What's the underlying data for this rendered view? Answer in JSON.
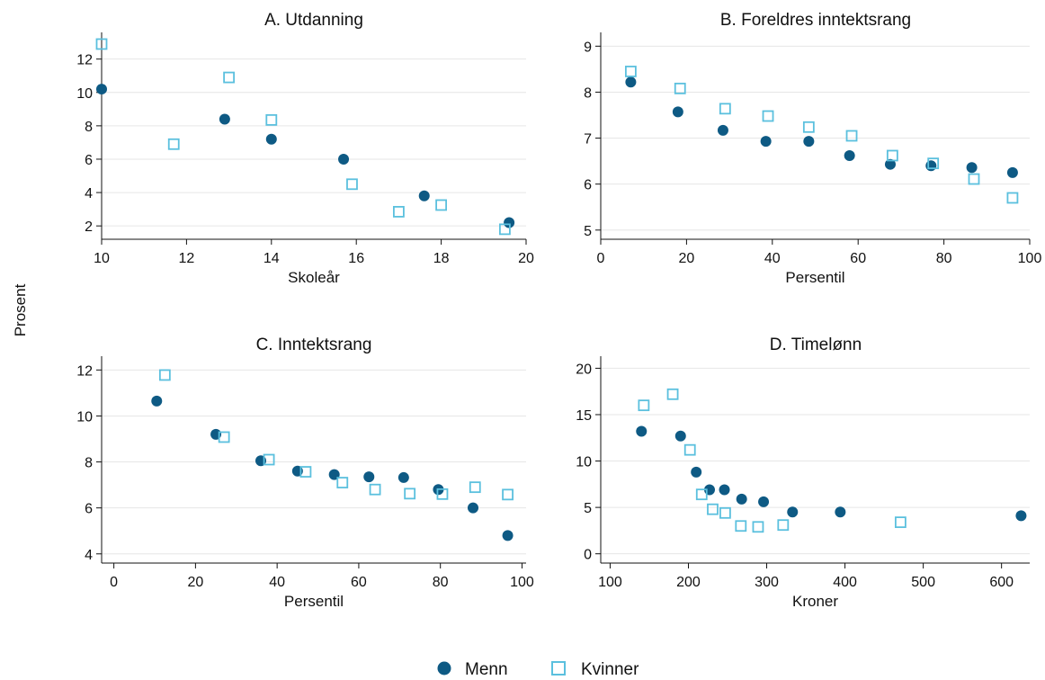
{
  "figure": {
    "ylabel": "Prosent",
    "legend": {
      "position": "bottom-center",
      "series": [
        {
          "name": "Menn",
          "marker": "filled-circle",
          "color": "#0e5a84"
        },
        {
          "name": "Kvinner",
          "marker": "hollow-square",
          "color": "#5bc0de"
        }
      ]
    }
  },
  "chart_data": [
    {
      "type": "scatter",
      "title": "A. Utdanning",
      "xlabel": "Skoleår",
      "xlim": [
        10,
        20
      ],
      "ylim": [
        1.2,
        13.6
      ],
      "xticks": [
        10,
        12,
        14,
        16,
        18,
        20
      ],
      "yticks": [
        2,
        4,
        6,
        8,
        10,
        12
      ],
      "grid": true,
      "series": [
        {
          "name": "Menn",
          "points": [
            [
              10,
              10.2
            ],
            [
              12.9,
              8.4
            ],
            [
              14,
              7.2
            ],
            [
              15.7,
              6.0
            ],
            [
              17.6,
              3.8
            ],
            [
              19.6,
              2.2
            ]
          ]
        },
        {
          "name": "Kvinner",
          "points": [
            [
              10,
              12.9
            ],
            [
              11.7,
              6.9
            ],
            [
              13,
              10.9
            ],
            [
              14,
              8.35
            ],
            [
              15.9,
              4.5
            ],
            [
              17,
              2.85
            ],
            [
              18,
              3.25
            ],
            [
              19.5,
              1.8
            ]
          ]
        }
      ]
    },
    {
      "type": "scatter",
      "title": "B. Foreldres inntektsrang",
      "xlabel": "Persentil",
      "xlim": [
        0,
        100
      ],
      "ylim": [
        4.8,
        9.3
      ],
      "xticks": [
        0,
        20,
        40,
        60,
        80,
        100
      ],
      "yticks": [
        5,
        6,
        7,
        8,
        9
      ],
      "grid": true,
      "series": [
        {
          "name": "Menn",
          "points": [
            [
              7,
              8.22
            ],
            [
              18,
              7.57
            ],
            [
              28.5,
              7.17
            ],
            [
              38.5,
              6.93
            ],
            [
              48.5,
              6.93
            ],
            [
              58,
              6.62
            ],
            [
              67.5,
              6.43
            ],
            [
              77,
              6.4
            ],
            [
              86.5,
              6.36
            ],
            [
              96,
              6.25
            ]
          ]
        },
        {
          "name": "Kvinner",
          "points": [
            [
              7,
              8.45
            ],
            [
              18.5,
              8.08
            ],
            [
              29,
              7.64
            ],
            [
              39,
              7.48
            ],
            [
              48.5,
              7.24
            ],
            [
              58.5,
              7.05
            ],
            [
              68,
              6.62
            ],
            [
              77.5,
              6.45
            ],
            [
              87,
              6.11
            ],
            [
              96,
              5.7
            ]
          ]
        }
      ]
    },
    {
      "type": "scatter",
      "title": "C. Inntektsrang",
      "xlabel": "Persentil",
      "xlim": [
        -3,
        101
      ],
      "ylim": [
        3.6,
        12.6
      ],
      "xticks": [
        0,
        20,
        40,
        60,
        80,
        100
      ],
      "yticks": [
        4,
        6,
        8,
        10,
        12
      ],
      "grid": true,
      "series": [
        {
          "name": "Menn",
          "points": [
            [
              10.5,
              10.65
            ],
            [
              25,
              9.2
            ],
            [
              36,
              8.05
            ],
            [
              45,
              7.6
            ],
            [
              54,
              7.45
            ],
            [
              62.5,
              7.35
            ],
            [
              71,
              7.32
            ],
            [
              79.5,
              6.8
            ],
            [
              88,
              6.0
            ],
            [
              96.5,
              4.8
            ]
          ]
        },
        {
          "name": "Kvinner",
          "points": [
            [
              12.5,
              11.78
            ],
            [
              27,
              9.08
            ],
            [
              38,
              8.1
            ],
            [
              47,
              7.57
            ],
            [
              56,
              7.1
            ],
            [
              64,
              6.8
            ],
            [
              72.5,
              6.62
            ],
            [
              80.5,
              6.6
            ],
            [
              88.5,
              6.9
            ],
            [
              96.5,
              6.58
            ]
          ]
        }
      ]
    },
    {
      "type": "scatter",
      "title": "D. Timelønn",
      "xlabel": "Kroner",
      "xlim": [
        88,
        636
      ],
      "ylim": [
        -1,
        21.3
      ],
      "xticks": [
        100,
        200,
        300,
        400,
        500,
        600
      ],
      "yticks": [
        0,
        5,
        10,
        15,
        20
      ],
      "grid": true,
      "series": [
        {
          "name": "Menn",
          "points": [
            [
              140,
              13.2
            ],
            [
              190,
              12.7
            ],
            [
              210,
              8.8
            ],
            [
              227,
              6.9
            ],
            [
              246,
              6.9
            ],
            [
              268,
              5.9
            ],
            [
              296,
              5.6
            ],
            [
              333,
              4.5
            ],
            [
              394,
              4.5
            ],
            [
              625,
              4.1
            ]
          ]
        },
        {
          "name": "Kvinner",
          "points": [
            [
              143,
              16.0
            ],
            [
              180,
              17.2
            ],
            [
              202,
              11.2
            ],
            [
              217,
              6.4
            ],
            [
              231,
              4.8
            ],
            [
              247,
              4.4
            ],
            [
              267,
              3.0
            ],
            [
              289,
              2.9
            ],
            [
              321,
              3.1
            ],
            [
              471,
              3.4
            ]
          ]
        }
      ]
    }
  ]
}
